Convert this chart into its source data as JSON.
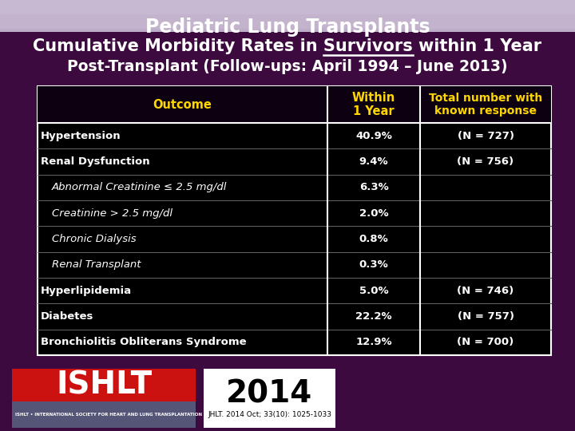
{
  "title_line1": "Pediatric Lung Transplants",
  "title_line2": "Cumulative Morbidity Rates in Survivors within 1 Year",
  "title_line3": "Post-Transplant (Follow-ups: April 1994 – June 2013)",
  "bg_color": "#3d0a40",
  "bg_top_color": "#c8b8cc",
  "table_bg": "#000000",
  "header_text_color": "#ffd700",
  "title_color": "#ffffff",
  "col_header": [
    "Outcome",
    "Within\n1 Year",
    "Total number with\nknown response"
  ],
  "rows": [
    {
      "outcome": "Hypertension",
      "indent": false,
      "italic": false,
      "within1yr": "40.9%",
      "total": "(N = 727)"
    },
    {
      "outcome": "Renal Dysfunction",
      "indent": false,
      "italic": false,
      "within1yr": "9.4%",
      "total": "(N = 756)"
    },
    {
      "outcome": "Abnormal Creatinine ≤ 2.5 mg/dl",
      "indent": true,
      "italic": true,
      "within1yr": "6.3%",
      "total": ""
    },
    {
      "outcome": "Creatinine > 2.5 mg/dl",
      "indent": true,
      "italic": true,
      "within1yr": "2.0%",
      "total": ""
    },
    {
      "outcome": "Chronic Dialysis",
      "indent": true,
      "italic": true,
      "within1yr": "0.8%",
      "total": ""
    },
    {
      "outcome": "Renal Transplant",
      "indent": true,
      "italic": true,
      "within1yr": "0.3%",
      "total": ""
    },
    {
      "outcome": "Hyperlipidemia",
      "indent": false,
      "italic": false,
      "within1yr": "5.0%",
      "total": "(N = 746)"
    },
    {
      "outcome": "Diabetes",
      "indent": false,
      "italic": false,
      "within1yr": "22.2%",
      "total": "(N = 757)"
    },
    {
      "outcome": "Bronchiolitis Obliterans Syndrome",
      "indent": false,
      "italic": false,
      "within1yr": "12.9%",
      "total": "(N = 700)"
    }
  ],
  "footer_year": "2014",
  "footer_text": "JHLT. 2014 Oct; 33(10): 1025-1033",
  "footer_org": "ISHLT • INTERNATIONAL SOCIETY FOR HEART AND LUNG TRANSPLANTATION",
  "footer_ishlt": "ISHLT"
}
